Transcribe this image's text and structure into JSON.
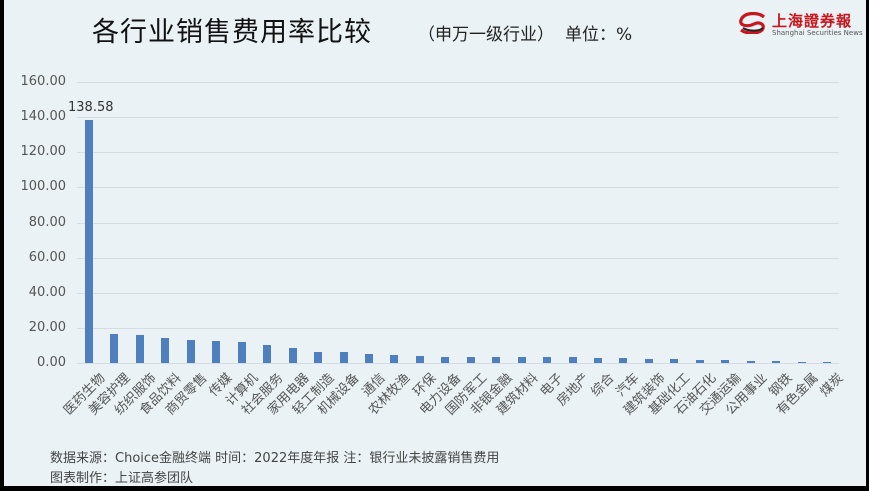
{
  "header": {
    "title": "各行业销售费用率比较",
    "subtitle": "（申万一级行业）",
    "unit": "单位：%"
  },
  "logo": {
    "name_cn": "上海證券報",
    "name_en": "Shanghai Securities News"
  },
  "footer": {
    "source": "数据来源：Choice金融终端  时间：2022年度年报   注：银行业未披露销售费用",
    "credit": "图表制作：上证高参团队"
  },
  "colors": {
    "bar": "#4e7fbe",
    "background": "#eaf2f6",
    "grid": "#d6dde2",
    "brand_red": "#c8161d"
  },
  "chart_data": {
    "type": "bar",
    "title": "各行业销售费用率比较（申万一级行业）单位：%",
    "xlabel": "",
    "ylabel": "%",
    "ylim": [
      0,
      160
    ],
    "yticks": [
      "0.00",
      "20.00",
      "40.00",
      "60.00",
      "80.00",
      "100.00",
      "120.00",
      "140.00",
      "160.00"
    ],
    "grid": true,
    "legend": null,
    "categories": [
      "医药生物",
      "美容护理",
      "纺织服饰",
      "食品饮料",
      "商贸零售",
      "传媒",
      "计算机",
      "社会服务",
      "家用电器",
      "轻工制造",
      "机械设备",
      "通信",
      "农林牧渔",
      "环保",
      "电力设备",
      "国防军工",
      "非银金融",
      "建筑材料",
      "电子",
      "房地产",
      "综合",
      "汽车",
      "建筑装饰",
      "基础化工",
      "石油石化",
      "交通运输",
      "公用事业",
      "钢铁",
      "有色金属",
      "煤炭"
    ],
    "values": [
      138.58,
      16.7,
      15.9,
      14.2,
      13.3,
      12.7,
      11.8,
      10.5,
      8.6,
      6.4,
      6.1,
      5.2,
      4.8,
      4.0,
      3.6,
      3.6,
      3.6,
      3.4,
      3.3,
      3.2,
      3.1,
      3.0,
      2.3,
      2.2,
      1.7,
      1.5,
      1.4,
      1.2,
      0.8,
      0.6
    ],
    "data_labels": [
      {
        "category": "医药生物",
        "text": "138.58"
      }
    ]
  }
}
